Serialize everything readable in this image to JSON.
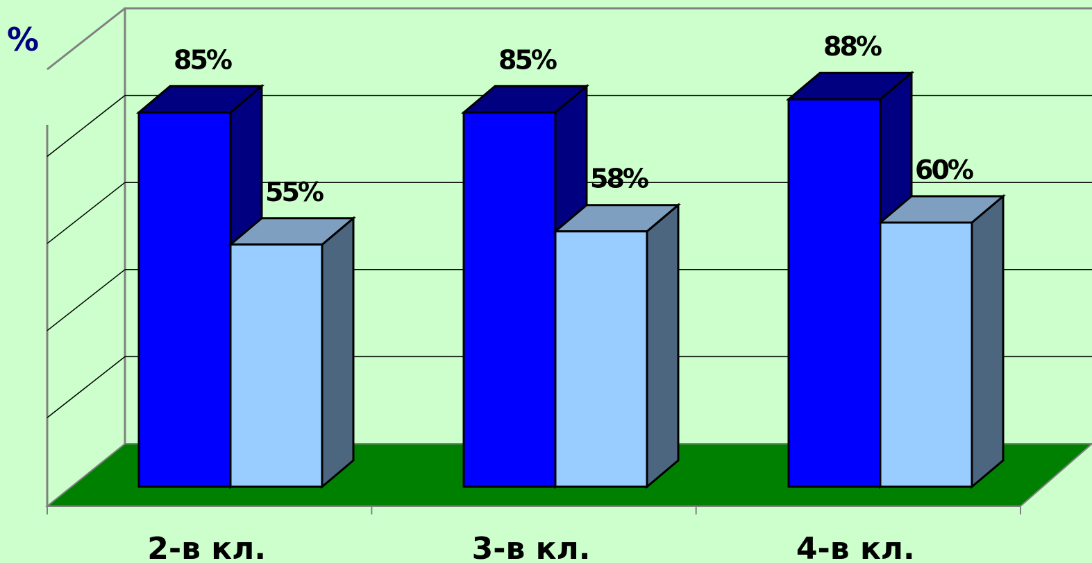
{
  "chart_data": {
    "type": "bar",
    "y_unit_label": "%",
    "categories": [
      "2-в кл.",
      "3-в кл.",
      "4-в кл."
    ],
    "series": [
      {
        "values": [
          85,
          85,
          88
        ],
        "labels": [
          "85%",
          "85%",
          "88%"
        ]
      },
      {
        "values": [
          55,
          58,
          60
        ],
        "labels": [
          "55%",
          "58%",
          "60%"
        ]
      }
    ],
    "ylim": [
      0,
      100
    ],
    "grid": true,
    "legend": "none",
    "three_d": true,
    "colors": {
      "background": "#ccffcc",
      "floor": "#008000",
      "series_0_front": "#0000ff",
      "series_0_side": "#000080",
      "series_1_front": "#99ccff",
      "series_1_side": "#4d6680",
      "series_1_top": "#7f9fc0",
      "grid": "#000000",
      "axis": "#808080",
      "unit_label": "#000080"
    }
  }
}
